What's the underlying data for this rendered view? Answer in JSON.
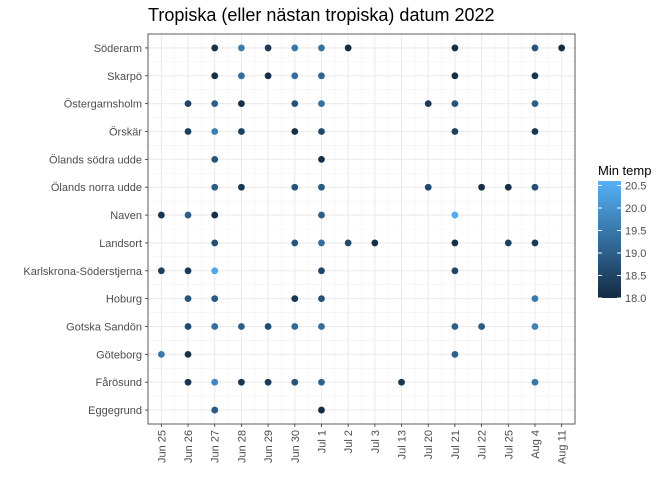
{
  "chart_data": {
    "type": "scatter",
    "title": "Tropiska (eller nästan tropiska) datum 2022",
    "xlabel": "",
    "ylabel": "",
    "x_categories": [
      "Jun 25",
      "Jun 26",
      "Jun 27",
      "Jun 28",
      "Jun 29",
      "Jun 30",
      "Jul 1",
      "Jul 2",
      "Jul 3",
      "Jul 13",
      "Jul 20",
      "Jul 21",
      "Jul 22",
      "Jul 25",
      "Aug 4",
      "Aug 11"
    ],
    "y_categories": [
      "Söderarm",
      "Skarpö",
      "Östergarnsholm",
      "Örskär",
      "Ölands södra udde",
      "Ölands norra udde",
      "Naven",
      "Landsort",
      "Karlskrona-Söderstjerna",
      "Hoburg",
      "Gotska Sandön",
      "Göteborg",
      "Fårösund",
      "Eggegrund"
    ],
    "color_scale": {
      "title": "Min temp",
      "min": 18.0,
      "max": 20.6,
      "ticks": [
        "18.0",
        "18.5",
        "19.0",
        "19.5",
        "20.0",
        "20.5"
      ],
      "low_color": "#132b43",
      "high_color": "#56b1f7"
    },
    "grid": true,
    "legend_position": "right",
    "points": [
      {
        "station": "Söderarm",
        "date": "Jun 27",
        "temp": 18.1
      },
      {
        "station": "Söderarm",
        "date": "Jun 28",
        "temp": 19.6
      },
      {
        "station": "Söderarm",
        "date": "Jun 29",
        "temp": 18.3
      },
      {
        "station": "Söderarm",
        "date": "Jun 30",
        "temp": 19.5
      },
      {
        "station": "Söderarm",
        "date": "Jul 1",
        "temp": 19.4
      },
      {
        "station": "Söderarm",
        "date": "Jul 2",
        "temp": 18.0
      },
      {
        "station": "Söderarm",
        "date": "Jul 21",
        "temp": 18.1
      },
      {
        "station": "Söderarm",
        "date": "Aug 4",
        "temp": 18.8
      },
      {
        "station": "Söderarm",
        "date": "Aug 11",
        "temp": 18.0
      },
      {
        "station": "Skarpö",
        "date": "Jun 27",
        "temp": 18.1
      },
      {
        "station": "Skarpö",
        "date": "Jun 28",
        "temp": 19.3
      },
      {
        "station": "Skarpö",
        "date": "Jun 29",
        "temp": 18.1
      },
      {
        "station": "Skarpö",
        "date": "Jun 30",
        "temp": 19.3
      },
      {
        "station": "Skarpö",
        "date": "Jul 1",
        "temp": 19.1
      },
      {
        "station": "Skarpö",
        "date": "Jul 21",
        "temp": 18.1
      },
      {
        "station": "Skarpö",
        "date": "Aug 4",
        "temp": 18.2
      },
      {
        "station": "Östergarnsholm",
        "date": "Jun 26",
        "temp": 18.5
      },
      {
        "station": "Östergarnsholm",
        "date": "Jun 27",
        "temp": 19.0
      },
      {
        "station": "Östergarnsholm",
        "date": "Jun 28",
        "temp": 18.1
      },
      {
        "station": "Östergarnsholm",
        "date": "Jun 30",
        "temp": 18.8
      },
      {
        "station": "Östergarnsholm",
        "date": "Jul 1",
        "temp": 19.4
      },
      {
        "station": "Östergarnsholm",
        "date": "Jul 20",
        "temp": 18.3
      },
      {
        "station": "Östergarnsholm",
        "date": "Jul 21",
        "temp": 18.8
      },
      {
        "station": "Östergarnsholm",
        "date": "Aug 4",
        "temp": 19.0
      },
      {
        "station": "Örskär",
        "date": "Jun 26",
        "temp": 18.4
      },
      {
        "station": "Örskär",
        "date": "Jun 27",
        "temp": 19.6
      },
      {
        "station": "Örskär",
        "date": "Jun 28",
        "temp": 18.4
      },
      {
        "station": "Örskär",
        "date": "Jun 30",
        "temp": 18.1
      },
      {
        "station": "Örskär",
        "date": "Jul 1",
        "temp": 18.6
      },
      {
        "station": "Örskär",
        "date": "Jul 21",
        "temp": 18.4
      },
      {
        "station": "Örskär",
        "date": "Aug 4",
        "temp": 18.2
      },
      {
        "station": "Ölands södra udde",
        "date": "Jun 27",
        "temp": 18.8
      },
      {
        "station": "Ölands södra udde",
        "date": "Jul 1",
        "temp": 18.1
      },
      {
        "station": "Ölands norra udde",
        "date": "Jun 27",
        "temp": 19.0
      },
      {
        "station": "Ölands norra udde",
        "date": "Jun 28",
        "temp": 18.3
      },
      {
        "station": "Ölands norra udde",
        "date": "Jun 30",
        "temp": 18.8
      },
      {
        "station": "Ölands norra udde",
        "date": "Jul 1",
        "temp": 18.9
      },
      {
        "station": "Ölands norra udde",
        "date": "Jul 20",
        "temp": 18.6
      },
      {
        "station": "Ölands norra udde",
        "date": "Jul 22",
        "temp": 18.1
      },
      {
        "station": "Ölands norra udde",
        "date": "Jul 25",
        "temp": 18.1
      },
      {
        "station": "Ölands norra udde",
        "date": "Aug 4",
        "temp": 18.7
      },
      {
        "station": "Naven",
        "date": "Jun 25",
        "temp": 18.2
      },
      {
        "station": "Naven",
        "date": "Jun 26",
        "temp": 19.0
      },
      {
        "station": "Naven",
        "date": "Jun 27",
        "temp": 18.1
      },
      {
        "station": "Naven",
        "date": "Jul 1",
        "temp": 19.0
      },
      {
        "station": "Naven",
        "date": "Jul 21",
        "temp": 20.5
      },
      {
        "station": "Landsort",
        "date": "Jun 27",
        "temp": 18.7
      },
      {
        "station": "Landsort",
        "date": "Jun 30",
        "temp": 18.8
      },
      {
        "station": "Landsort",
        "date": "Jul 1",
        "temp": 19.3
      },
      {
        "station": "Landsort",
        "date": "Jul 2",
        "temp": 18.6
      },
      {
        "station": "Landsort",
        "date": "Jul 3",
        "temp": 18.1
      },
      {
        "station": "Landsort",
        "date": "Jul 21",
        "temp": 18.1
      },
      {
        "station": "Landsort",
        "date": "Jul 25",
        "temp": 18.4
      },
      {
        "station": "Landsort",
        "date": "Aug 4",
        "temp": 18.3
      },
      {
        "station": "Karlskrona-Söderstjerna",
        "date": "Jun 25",
        "temp": 18.4
      },
      {
        "station": "Karlskrona-Söderstjerna",
        "date": "Jun 26",
        "temp": 18.3
      },
      {
        "station": "Karlskrona-Söderstjerna",
        "date": "Jun 27",
        "temp": 20.4
      },
      {
        "station": "Karlskrona-Söderstjerna",
        "date": "Jul 1",
        "temp": 18.5
      },
      {
        "station": "Karlskrona-Söderstjerna",
        "date": "Jul 21",
        "temp": 18.5
      },
      {
        "station": "Hoburg",
        "date": "Jun 26",
        "temp": 18.8
      },
      {
        "station": "Hoburg",
        "date": "Jun 27",
        "temp": 18.9
      },
      {
        "station": "Hoburg",
        "date": "Jun 30",
        "temp": 18.2
      },
      {
        "station": "Hoburg",
        "date": "Jul 1",
        "temp": 18.8
      },
      {
        "station": "Hoburg",
        "date": "Aug 4",
        "temp": 19.5
      },
      {
        "station": "Gotska Sandön",
        "date": "Jun 26",
        "temp": 18.6
      },
      {
        "station": "Gotska Sandön",
        "date": "Jun 27",
        "temp": 19.3
      },
      {
        "station": "Gotska Sandön",
        "date": "Jun 28",
        "temp": 19.0
      },
      {
        "station": "Gotska Sandön",
        "date": "Jun 29",
        "temp": 18.6
      },
      {
        "station": "Gotska Sandön",
        "date": "Jun 30",
        "temp": 19.2
      },
      {
        "station": "Gotska Sandön",
        "date": "Jul 1",
        "temp": 19.3
      },
      {
        "station": "Gotska Sandön",
        "date": "Jul 21",
        "temp": 19.0
      },
      {
        "station": "Gotska Sandön",
        "date": "Jul 22",
        "temp": 18.9
      },
      {
        "station": "Gotska Sandön",
        "date": "Aug 4",
        "temp": 19.7
      },
      {
        "station": "Göteborg",
        "date": "Jun 25",
        "temp": 19.5
      },
      {
        "station": "Göteborg",
        "date": "Jun 26",
        "temp": 18.1
      },
      {
        "station": "Göteborg",
        "date": "Jul 21",
        "temp": 19.0
      },
      {
        "station": "Fårösund",
        "date": "Jun 26",
        "temp": 18.2
      },
      {
        "station": "Fårösund",
        "date": "Jun 27",
        "temp": 19.8
      },
      {
        "station": "Fårösund",
        "date": "Jun 28",
        "temp": 18.2
      },
      {
        "station": "Fårösund",
        "date": "Jun 29",
        "temp": 18.3
      },
      {
        "station": "Fårösund",
        "date": "Jun 30",
        "temp": 18.8
      },
      {
        "station": "Fårösund",
        "date": "Jul 1",
        "temp": 19.1
      },
      {
        "station": "Fårösund",
        "date": "Jul 13",
        "temp": 18.2
      },
      {
        "station": "Fårösund",
        "date": "Aug 4",
        "temp": 19.5
      },
      {
        "station": "Eggegrund",
        "date": "Jun 27",
        "temp": 18.9
      },
      {
        "station": "Eggegrund",
        "date": "Jul 1",
        "temp": 18.0
      }
    ]
  }
}
